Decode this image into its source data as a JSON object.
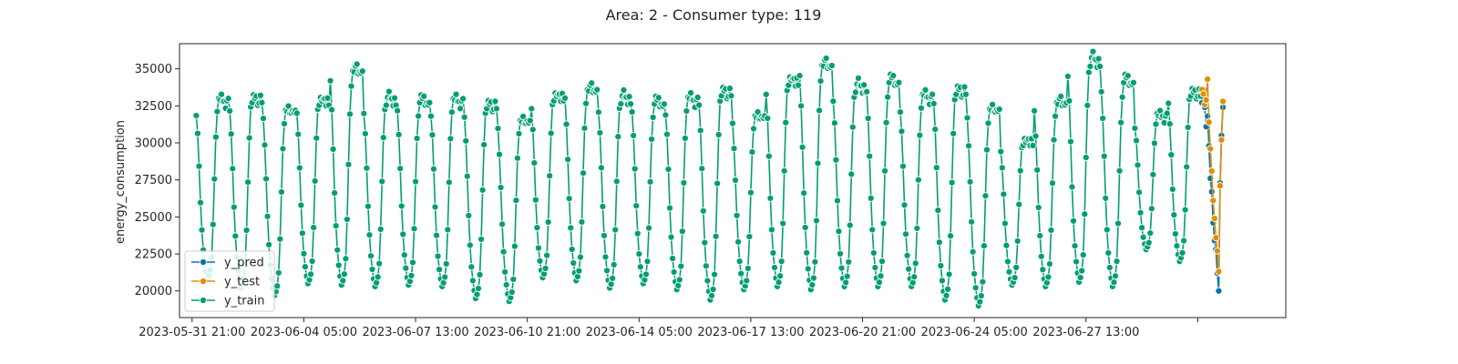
{
  "chart_data": {
    "type": "line",
    "title": "Area: 2 - Consumer type: 119",
    "xlabel": "",
    "ylabel": "energy_consumption",
    "x_axis": {
      "type": "datetime",
      "range": [
        "2023-05-31 12:00",
        "2023-07-03 12:00"
      ],
      "ticks": [
        "2023-05-31 21:00",
        "2023-06-04 05:00",
        "2023-06-07 13:00",
        "2023-06-10 21:00",
        "2023-06-14 05:00",
        "2023-06-17 13:00",
        "2023-06-20 21:00",
        "2023-06-24 05:00",
        "2023-06-27 13:00",
        ""
      ]
    },
    "ylim": [
      18200,
      36700
    ],
    "yticks": [
      20000,
      22500,
      25000,
      27500,
      30000,
      32500,
      35000
    ],
    "grid": false,
    "legend_position": "lower-left",
    "colors": {
      "y_pred": "#0173b2",
      "y_test": "#de8f05",
      "y_train": "#029e73"
    },
    "series": [
      {
        "name": "y_pred",
        "start": "2023-07-01 00:00",
        "step_hours": 1,
        "values": [
          32700,
          33600,
          32400,
          31100,
          31800,
          29800,
          27600,
          26700,
          24600,
          23400,
          22800,
          21200,
          20000,
          27300,
          30500,
          32400
        ]
      },
      {
        "name": "y_test",
        "start": "2023-07-01 00:00",
        "step_hours": 1,
        "values": [
          33600,
          33300,
          32600,
          32900,
          34300,
          31400,
          29600,
          28100,
          26100,
          24900,
          23600,
          22700,
          21300,
          27100,
          30200,
          32800
        ]
      },
      {
        "name": "y_train",
        "start": "2023-06-01 00:00",
        "step_hours": 1,
        "daily_profile_hours": [
          0,
          1,
          2,
          3,
          4,
          5,
          6,
          7,
          8,
          9,
          10,
          11,
          12,
          13,
          14,
          15,
          16,
          17,
          18,
          19,
          20,
          21,
          22,
          23
        ],
        "daily_max": [
          33100,
          33200,
          32400,
          33100,
          35200,
          33200,
          33100,
          33100,
          32800,
          31700,
          33400,
          33900,
          33300,
          33000,
          33200,
          33700,
          32000,
          34500,
          35600,
          34100,
          34500,
          33400,
          33800,
          32500,
          30300,
          33000,
          35900,
          34500,
          32000,
          33600
        ],
        "daily_min": [
          20800,
          20200,
          19700,
          20500,
          20400,
          20300,
          20400,
          20300,
          19500,
          19300,
          20900,
          20700,
          20200,
          20500,
          20100,
          19400,
          20100,
          20300,
          20100,
          20300,
          20300,
          20300,
          19400,
          19000,
          20400,
          20300,
          20600,
          20300,
          22800,
          22000
        ]
      }
    ]
  }
}
